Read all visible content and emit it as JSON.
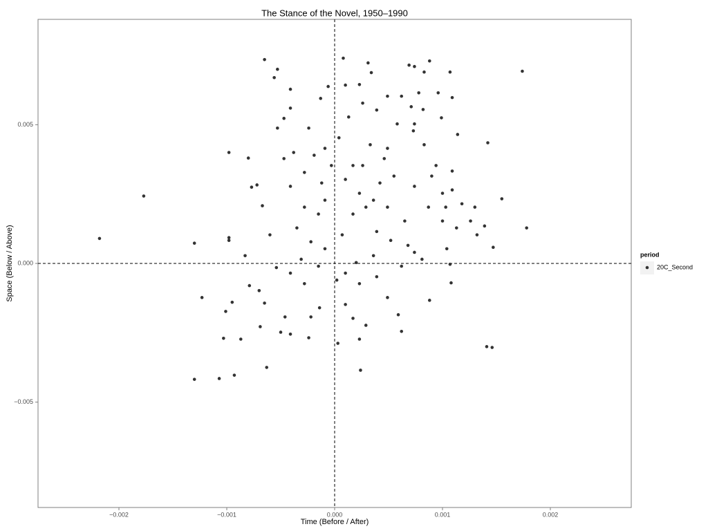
{
  "chart_data": {
    "type": "scatter",
    "title": "The Stance of the Novel, 1950–1990",
    "x_label": "Time (Before / After)",
    "y_label": "Space (Below / Above)",
    "xlim": [
      -0.00275,
      0.00275
    ],
    "ylim": [
      -0.0088,
      0.0088
    ],
    "xticks": [
      {
        "value": -0.002,
        "label": "−0.002"
      },
      {
        "value": -0.001,
        "label": "−0.001"
      },
      {
        "value": 0,
        "label": "0.000"
      },
      {
        "value": 0.001,
        "label": "0.001"
      },
      {
        "value": 0.002,
        "label": "0.002"
      }
    ],
    "yticks": [
      {
        "value": -0.005,
        "label": "−0.005"
      },
      {
        "value": 0,
        "label": "0.000"
      },
      {
        "value": 0.005,
        "label": "0.005"
      }
    ],
    "reference_lines": {
      "x": 0,
      "y": 0
    },
    "grid": false,
    "legend_title": "period",
    "legend_position": "right",
    "series": [
      {
        "name": "20C_Second",
        "color": "#333333",
        "x": [
          -0.00218,
          -0.00177,
          -0.0013,
          -0.0013,
          -0.00123,
          -0.00107,
          -0.00093,
          -0.00103,
          -0.00087,
          -0.00101,
          -0.00095,
          -0.00098,
          -0.00098,
          -0.00098,
          -0.0008,
          -0.00065,
          -0.00053,
          -0.00056,
          -0.00063,
          -0.00069,
          -0.00083,
          -0.00077,
          -0.00072,
          -0.00067,
          -0.0006,
          -0.00054,
          -0.0005,
          -0.00046,
          -0.00041,
          -0.00024,
          -0.00022,
          -0.00014,
          -0.00047,
          -0.00041,
          -0.00041,
          -0.00053,
          -0.00038,
          -0.00024,
          -0.00013,
          -6e-05,
          8e-05,
          0.0001,
          0.00034,
          0.00031,
          0.00023,
          0.00069,
          0.00074,
          0.00083,
          0.00088,
          0.00107,
          0.00109,
          0.00096,
          0.00078,
          0.00082,
          0.00099,
          0.00114,
          0.00142,
          0.00174,
          0.00155,
          0.00178,
          0.00147,
          0.00141,
          0.00146,
          0.00107,
          0.00108,
          0.00088,
          0.00062,
          0.00023,
          0.00024,
          3e-05,
          2e-05,
          0.00132,
          0.00139,
          0.0013,
          0.00109,
          0.00104,
          0.00081,
          0.00068,
          0.00052,
          0.00039,
          0.00029,
          0.00036,
          0.00023,
          0.0001,
          0.00017,
          0.00026,
          0.00046,
          0.00049,
          0.00058,
          0.00073,
          0.00083,
          0.00094,
          0.00074,
          0.00087,
          0.001,
          0.00065,
          0.00049,
          -9e-05,
          -0.00015,
          -0.00028,
          -0.00035,
          -0.00022,
          -9e-05,
          7e-05,
          0.00017,
          -3e-05,
          -0.00012,
          -0.00028,
          -0.00041,
          -0.00047,
          0.0002,
          0.00036,
          0.0001,
          0.00023,
          0.00039,
          0.00049,
          0.00059,
          0.0001,
          0.00017,
          0.00029,
          -0.00028,
          -0.00041,
          -0.00031,
          -0.00015,
          -0.0007,
          -0.00065,
          -0.00079,
          0.00062,
          0.00074,
          0.00042,
          0.00055,
          0.00033,
          0.00039,
          0.00049,
          0.00026,
          0.00013,
          4e-05,
          -9e-05,
          -0.00019,
          0.00062,
          0.00071,
          0.00074,
          0.0009,
          0.001,
          0.00109,
          0.00118,
          0.00126,
          0.00103,
          0.00113
        ],
        "values": [
          0.0009,
          0.00243,
          0.00073,
          -0.00418,
          -0.00123,
          -0.00415,
          -0.00403,
          -0.0027,
          -0.00273,
          -0.00173,
          -0.0014,
          0.00093,
          0.00083,
          0.004,
          0.0038,
          0.00735,
          0.007,
          0.0067,
          -0.00375,
          -0.00228,
          0.00028,
          0.00275,
          0.00283,
          0.00208,
          0.00103,
          -0.00015,
          -0.00248,
          -0.00193,
          -0.00255,
          -0.00268,
          -0.00193,
          -0.0016,
          0.00523,
          0.00628,
          0.0056,
          0.00488,
          0.004,
          0.00488,
          0.00595,
          0.00638,
          0.0074,
          0.00643,
          0.00688,
          0.00723,
          0.00645,
          0.00715,
          0.0071,
          0.0069,
          0.0073,
          0.0069,
          0.00598,
          0.00615,
          0.00615,
          0.00555,
          0.00525,
          0.00465,
          0.00435,
          0.00693,
          0.00233,
          0.00128,
          0.00058,
          -0.003,
          -0.00303,
          -3e-05,
          -0.0007,
          -0.00133,
          -0.00245,
          -0.00273,
          -0.00385,
          -0.00288,
          -0.0006,
          0.00103,
          0.00135,
          0.00203,
          0.00333,
          0.00053,
          0.00015,
          0.00065,
          0.00083,
          0.00115,
          0.00203,
          0.00228,
          0.00253,
          0.00303,
          0.00353,
          0.00353,
          0.00378,
          0.00415,
          0.00503,
          0.00478,
          0.00428,
          0.00353,
          0.00278,
          0.00203,
          0.00153,
          0.00153,
          0.00203,
          0.00228,
          0.00178,
          0.00203,
          0.00128,
          0.00078,
          0.00053,
          0.00103,
          0.00178,
          0.00353,
          0.0029,
          0.00328,
          0.00278,
          0.00378,
          3e-05,
          0.00028,
          -0.00035,
          -0.00073,
          -0.00048,
          -0.00123,
          -0.00185,
          -0.00148,
          -0.00198,
          -0.00223,
          -0.00073,
          -0.00035,
          0.00015,
          -0.0001,
          -0.00098,
          -0.00143,
          -0.0008,
          -0.0001,
          0.0004,
          0.0029,
          0.00315,
          0.00428,
          0.00553,
          0.00603,
          0.00578,
          0.00528,
          0.00453,
          0.00415,
          0.0039,
          0.00603,
          0.00565,
          0.00503,
          0.00315,
          0.00253,
          0.00265,
          0.00215,
          0.00153,
          0.00203,
          0.00128
        ]
      }
    ]
  }
}
